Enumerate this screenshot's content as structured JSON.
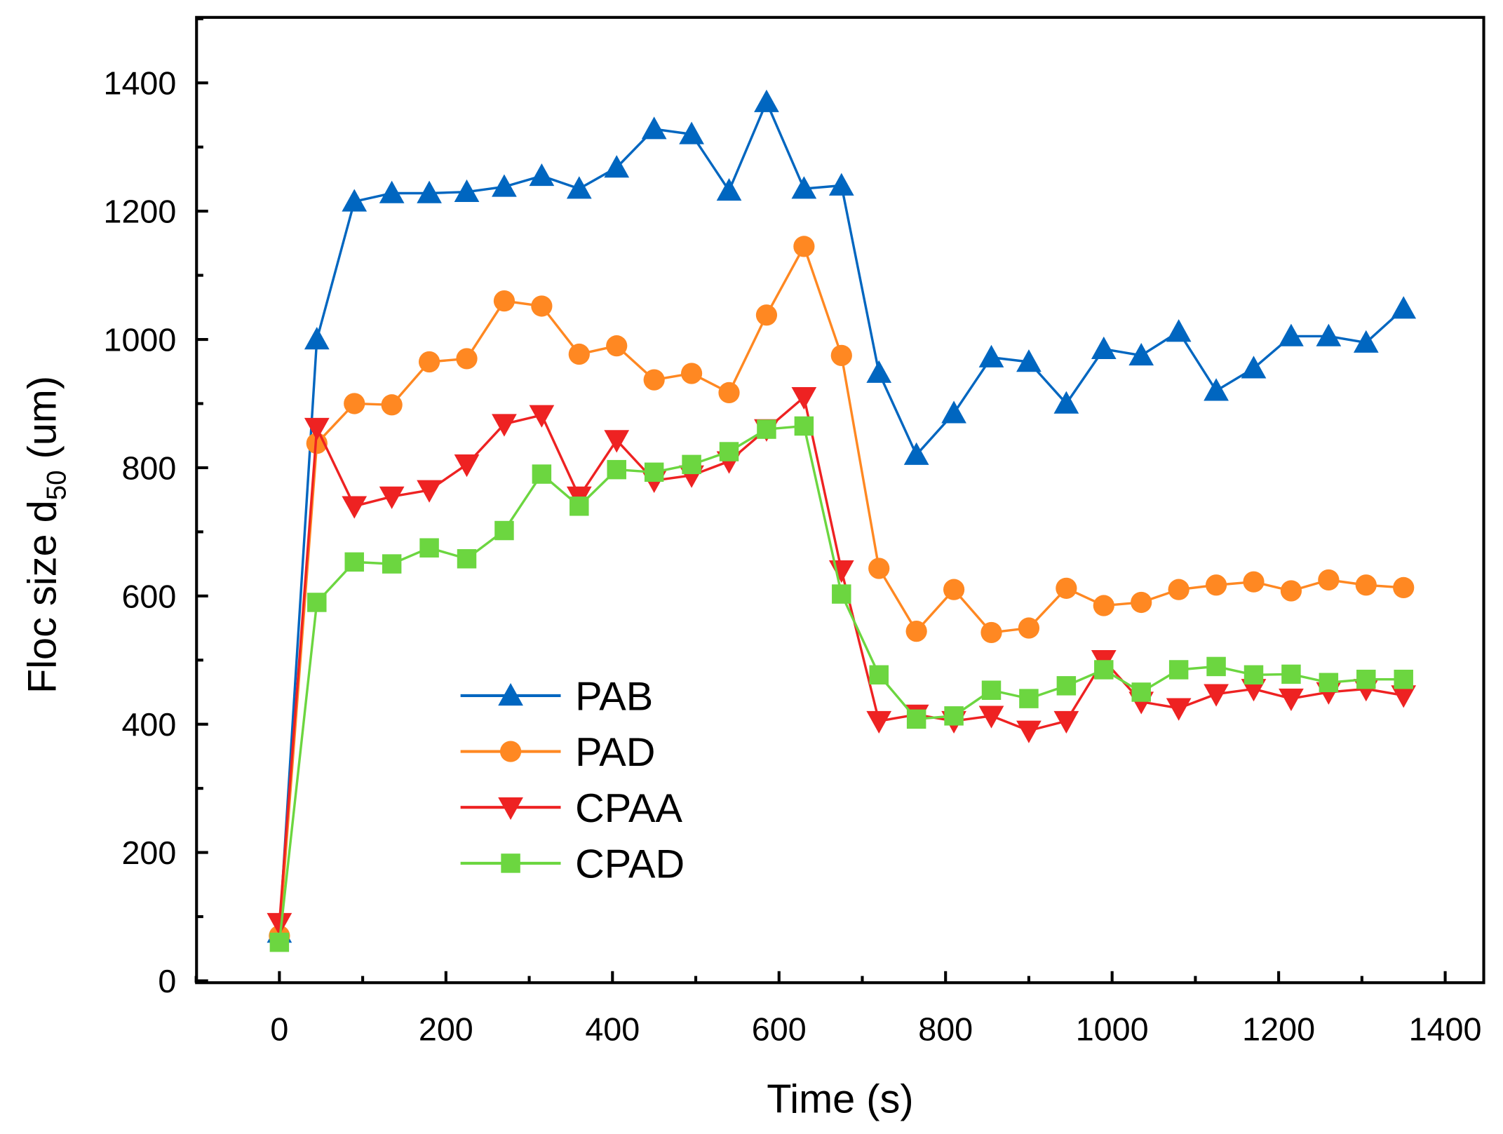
{
  "chart_data": {
    "type": "line",
    "title": "",
    "xlabel": "Time (s)",
    "ylabel_main": "Floc size d",
    "ylabel_sub": "50",
    "ylabel_unit": " (um)",
    "xlim": [
      -125,
      1450
    ],
    "ylim": [
      0,
      1500
    ],
    "xticks": [
      0,
      200,
      400,
      600,
      800,
      1000,
      1200,
      1400
    ],
    "yticks": [
      0,
      200,
      400,
      600,
      800,
      1000,
      1200,
      1400
    ],
    "legend_position": "bottom-left",
    "grid": false,
    "x": [
      0,
      45,
      90,
      135,
      180,
      225,
      270,
      315,
      360,
      405,
      450,
      495,
      540,
      585,
      630,
      675,
      720,
      765,
      810,
      855,
      900,
      945,
      990,
      1035,
      1080,
      1125,
      1170,
      1215,
      1260,
      1305,
      1350
    ],
    "series": [
      {
        "name": "PAB",
        "color": "#0066C0",
        "marker": "triangle-up",
        "values": [
          75,
          1000,
          1215,
          1228,
          1228,
          1230,
          1238,
          1255,
          1235,
          1268,
          1328,
          1320,
          1232,
          1370,
          1235,
          1240,
          948,
          820,
          885,
          972,
          965,
          900,
          985,
          975,
          1012,
          920,
          955,
          1005,
          1005,
          995,
          1048
        ]
      },
      {
        "name": "PAD",
        "color": "#FF8822",
        "marker": "circle",
        "values": [
          70,
          838,
          900,
          898,
          965,
          970,
          1060,
          1052,
          977,
          990,
          937,
          947,
          917,
          1038,
          1145,
          975,
          643,
          545,
          610,
          543,
          550,
          612,
          585,
          590,
          610,
          617,
          622,
          608,
          625,
          617,
          613
        ]
      },
      {
        "name": "CPAA",
        "color": "#EE2222",
        "marker": "triangle-down",
        "values": [
          90,
          862,
          740,
          755,
          765,
          805,
          868,
          882,
          755,
          843,
          780,
          788,
          810,
          860,
          910,
          640,
          405,
          415,
          405,
          413,
          390,
          405,
          500,
          435,
          425,
          447,
          455,
          440,
          450,
          455,
          445
        ]
      },
      {
        "name": "CPAD",
        "color": "#6CD640",
        "marker": "square",
        "values": [
          60,
          590,
          653,
          650,
          675,
          658,
          702,
          790,
          740,
          797,
          793,
          805,
          825,
          860,
          865,
          603,
          477,
          408,
          413,
          453,
          440,
          460,
          485,
          450,
          485,
          490,
          477,
          478,
          465,
          470,
          470
        ]
      }
    ]
  }
}
